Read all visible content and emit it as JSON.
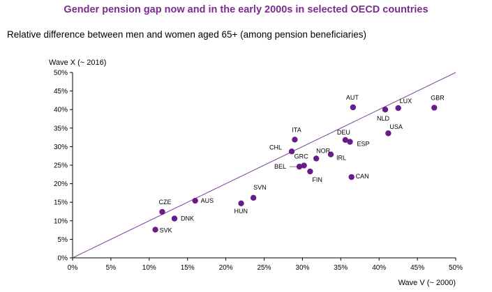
{
  "chart_data": {
    "type": "scatter",
    "title": "Gender pension gap now and in the early 2000s in selected OECD countries",
    "subtitle": "Relative difference between men and women aged 65+ (among pension beneficiaries)",
    "xlabel": "Wave V (~ 2000)",
    "ylabel": "Wave X (~ 2016)",
    "xlim": [
      0,
      50
    ],
    "ylim": [
      0,
      50
    ],
    "xticks": [
      "0%",
      "5%",
      "10%",
      "15%",
      "20%",
      "25%",
      "30%",
      "35%",
      "40%",
      "45%",
      "50%"
    ],
    "yticks": [
      "0%",
      "5%",
      "10%",
      "15%",
      "20%",
      "25%",
      "30%",
      "35%",
      "40%",
      "45%",
      "50%"
    ],
    "grid": false,
    "reference_line": "45-degree",
    "marker_color": "#6a1b8a",
    "line_color": "#7b3f9e",
    "title_color": "#7b2c8f",
    "points": [
      {
        "label": "SVK",
        "x": 10.8,
        "y": 7.6
      },
      {
        "label": "DNK",
        "x": 13.3,
        "y": 10.6
      },
      {
        "label": "CZE",
        "x": 11.7,
        "y": 12.4
      },
      {
        "label": "AUS",
        "x": 16.0,
        "y": 15.4
      },
      {
        "label": "HUN",
        "x": 22.0,
        "y": 14.7
      },
      {
        "label": "SVN",
        "x": 23.6,
        "y": 16.2
      },
      {
        "label": "CHL",
        "x": 28.6,
        "y": 28.7
      },
      {
        "label": "ITA",
        "x": 29.0,
        "y": 31.9
      },
      {
        "label": "BEL",
        "x": 29.6,
        "y": 24.6
      },
      {
        "label": "GRC",
        "x": 30.2,
        "y": 24.9
      },
      {
        "label": "FIN",
        "x": 31.0,
        "y": 23.3
      },
      {
        "label": "NOR",
        "x": 31.8,
        "y": 26.8
      },
      {
        "label": "IRL",
        "x": 33.7,
        "y": 27.9
      },
      {
        "label": "DEU",
        "x": 35.6,
        "y": 31.8
      },
      {
        "label": "ESP",
        "x": 36.2,
        "y": 31.3
      },
      {
        "label": "CAN",
        "x": 36.4,
        "y": 21.8
      },
      {
        "label": "AUT",
        "x": 36.6,
        "y": 40.6
      },
      {
        "label": "NLD",
        "x": 40.8,
        "y": 40.0
      },
      {
        "label": "USA",
        "x": 41.2,
        "y": 33.6
      },
      {
        "label": "LUX",
        "x": 42.5,
        "y": 40.4
      },
      {
        "label": "GBR",
        "x": 47.2,
        "y": 40.5
      }
    ]
  }
}
